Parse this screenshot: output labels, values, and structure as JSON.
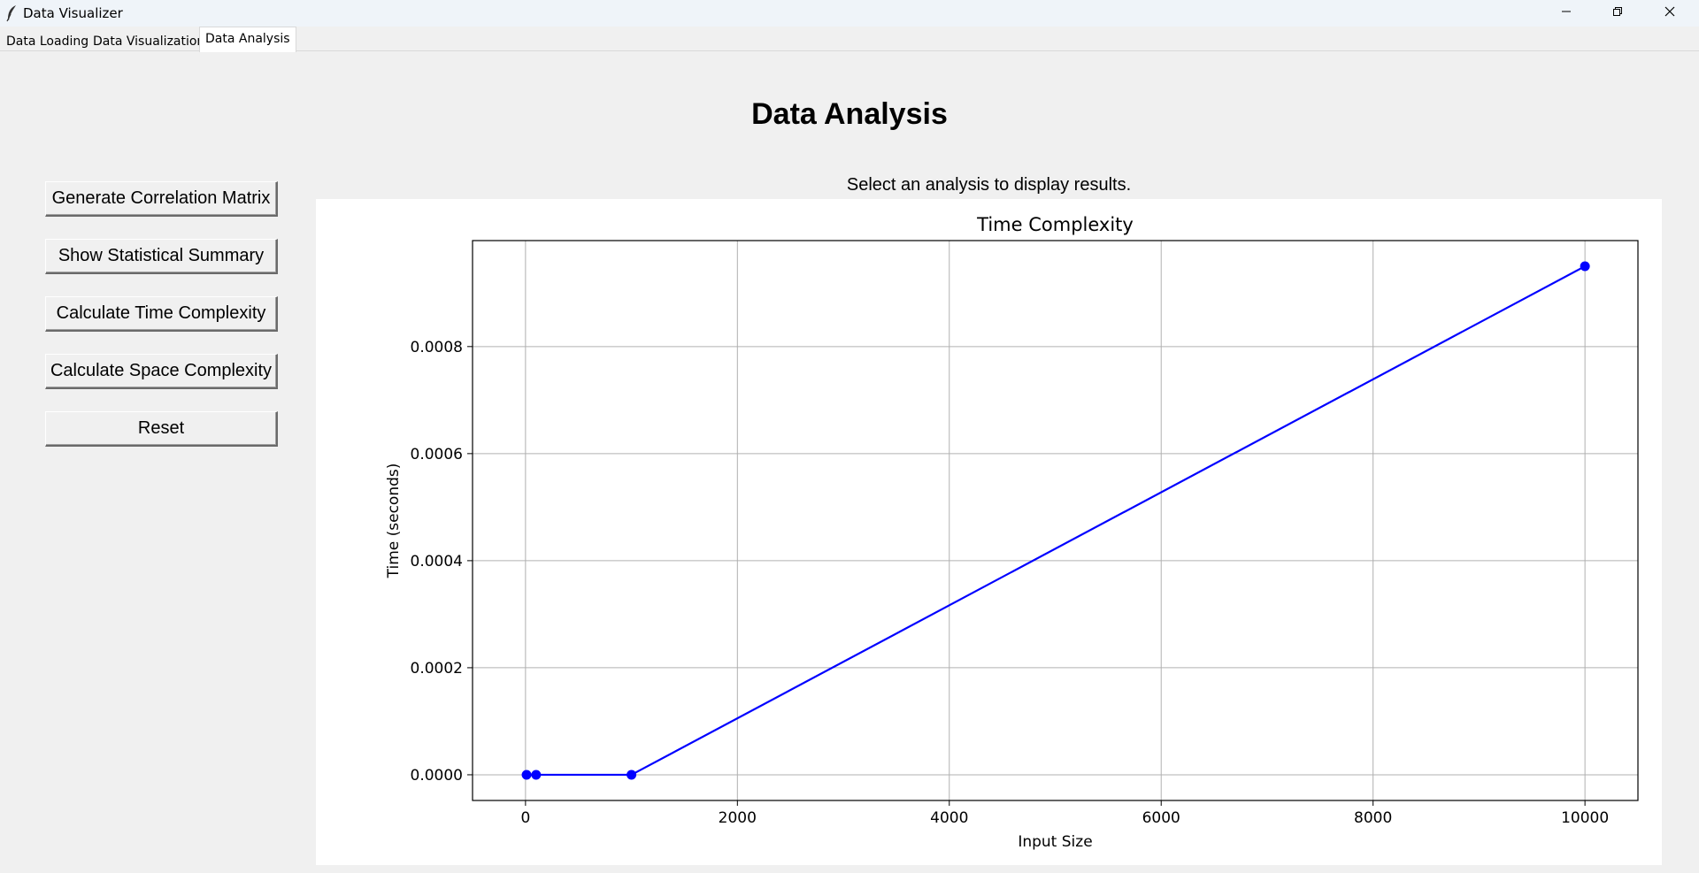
{
  "window": {
    "title": "Data Visualizer",
    "icon": "feather-icon",
    "controls": [
      "minimize-icon",
      "restore-icon",
      "close-icon"
    ]
  },
  "tabs": [
    {
      "label": "Data Loading",
      "active": false
    },
    {
      "label": "Data Visualization",
      "active": false
    },
    {
      "label": "Data Analysis",
      "active": true
    }
  ],
  "main": {
    "title": "Data Analysis",
    "status": "Select an analysis to display results."
  },
  "buttons": [
    {
      "label": "Generate Correlation Matrix"
    },
    {
      "label": "Show Statistical Summary"
    },
    {
      "label": "Calculate Time Complexity"
    },
    {
      "label": "Calculate Space Complexity"
    },
    {
      "label": "Reset"
    }
  ],
  "colors": {
    "series": "#0000ff",
    "panel": "#ffffff",
    "window_bg": "#f0f0f0"
  },
  "chart_data": {
    "type": "line",
    "title": "Time Complexity",
    "xlabel": "Input Size",
    "ylabel": "Time (seconds)",
    "grid": true,
    "xlim": [
      -500,
      10500
    ],
    "ylim": [
      -4.8e-05,
      0.000998
    ],
    "x_ticks": [
      0,
      2000,
      4000,
      6000,
      8000,
      10000
    ],
    "x_tick_labels": [
      "0",
      "2000",
      "4000",
      "6000",
      "8000",
      "10000"
    ],
    "y_ticks": [
      0,
      0.0002,
      0.0004,
      0.0006,
      0.0008
    ],
    "y_tick_labels": [
      "0.0000",
      "0.0002",
      "0.0004",
      "0.0006",
      "0.0008"
    ],
    "series": [
      {
        "color": "#0000ff",
        "marker": "circle",
        "x": [
          10,
          100,
          1000,
          10000
        ],
        "y": [
          0.0,
          0.0,
          0.0,
          0.00095
        ]
      }
    ]
  }
}
